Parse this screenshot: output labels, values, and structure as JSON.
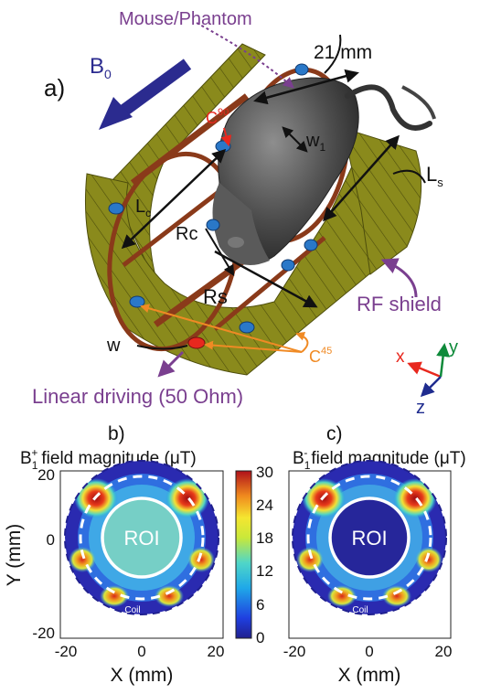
{
  "panel_a": {
    "label": "a)",
    "b0_main": "B",
    "b0_sub": "0",
    "mouse_label": "Mouse/Phantom",
    "dim_21mm": "21 mm",
    "c90_main": "C",
    "c90_sup": "90",
    "w1_main": "w",
    "w1_sub": "1",
    "ls_main": "L",
    "ls_sub": "s",
    "lc_main": "L",
    "lc_sub": "c",
    "rc": "Rc",
    "rs": "Rs",
    "rf_shield": "RF shield",
    "w_label": "w",
    "c45_main": "C",
    "c45_sup": "45",
    "linear_driving": "Linear driving (50 Ohm)",
    "axis_x": "x",
    "axis_y": "y",
    "axis_z": "z",
    "colors": {
      "shield": "#8a8a1c",
      "ring": "#8a3a1a",
      "b0_arrow": "#2b2b8f",
      "purple": "#7a3f8f",
      "orange": "#f08a24",
      "red": "#e8281e",
      "axis_green": "#0e8a3a",
      "axis_blue": "#1f2c8f"
    }
  },
  "panel_b": {
    "letter": "b)",
    "title_sym": "B",
    "title_sub": "1",
    "title_sup": "+",
    "title_rest": "field magnitude (μT)",
    "roi": "ROI",
    "coil": "Coil"
  },
  "panel_c": {
    "letter": "c)",
    "title_sym": "B",
    "title_sub": "1",
    "title_sup": "-",
    "title_rest": "field magnitude (μT)",
    "roi": "ROI",
    "coil": "Coil"
  },
  "axes": {
    "xlabel": "X (mm)",
    "ylabel": "Y (mm)",
    "x_ticks": [
      "-20",
      "0",
      "20"
    ],
    "y_ticks": [
      "20",
      "0",
      "-20"
    ]
  },
  "colorbar": {
    "ticks": [
      "30",
      "24",
      "18",
      "12",
      "6",
      "0"
    ],
    "range": [
      0,
      30
    ]
  }
}
